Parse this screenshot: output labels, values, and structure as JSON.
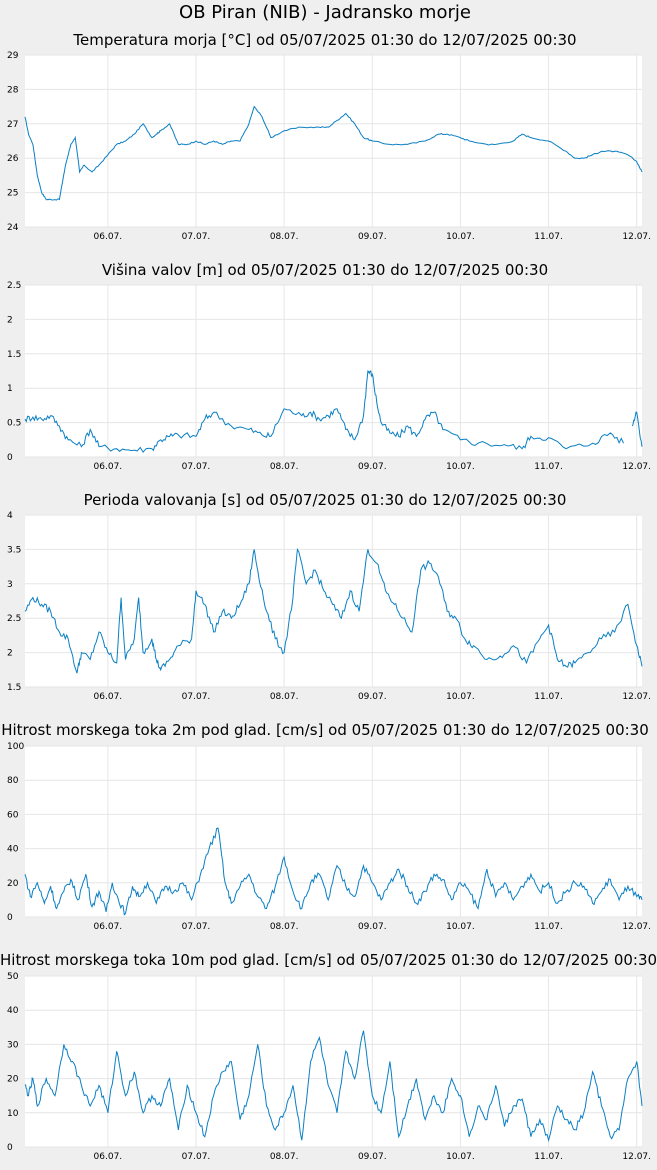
{
  "title": "OB Piran (NIB) - Jadransko morje",
  "line_color": "#0a7fc4",
  "chart_data": [
    {
      "type": "line",
      "title": "Temperatura morja [°C] od 05/07/2025 01:30 do 12/07/2025 00:30",
      "ylim": [
        24,
        29
      ],
      "yticks": [
        "24",
        "25",
        "26",
        "27",
        "28",
        "29"
      ],
      "xticks": [
        "06.07.",
        "07.07.",
        "08.07.",
        "09.07.",
        "10.07.",
        "11.07.",
        "12.07."
      ],
      "xlim_days": [
        5.06,
        12.06
      ],
      "grid": true,
      "series": [
        {
          "x": [
            5.06,
            5.1,
            5.15,
            5.2,
            5.25,
            5.3,
            5.35,
            5.45,
            5.52,
            5.58,
            5.63,
            5.68,
            5.73,
            5.82,
            5.9,
            6.0,
            6.1,
            6.2,
            6.3,
            6.4,
            6.5,
            6.55,
            6.6,
            6.7,
            6.8,
            6.9,
            7.0,
            7.1,
            7.2,
            7.3,
            7.4,
            7.5,
            7.6,
            7.66,
            7.75,
            7.85,
            8.0,
            8.2,
            8.4,
            8.5,
            8.6,
            8.7,
            8.8,
            8.9,
            9.0,
            9.2,
            9.4,
            9.6,
            9.75,
            9.85,
            10.0,
            10.1,
            10.3,
            10.4,
            10.6,
            10.7,
            10.8,
            11.0,
            11.2,
            11.3,
            11.4,
            11.5,
            11.6,
            11.75,
            11.9,
            12.0,
            12.06
          ],
          "y": [
            27.2,
            26.7,
            26.4,
            25.5,
            25.0,
            24.8,
            24.8,
            24.8,
            25.8,
            26.4,
            26.6,
            25.6,
            25.8,
            25.6,
            25.8,
            26.1,
            26.4,
            26.5,
            26.7,
            27.0,
            26.6,
            26.7,
            26.8,
            27.0,
            26.4,
            26.4,
            26.5,
            26.4,
            26.5,
            26.4,
            26.5,
            26.5,
            27.0,
            27.5,
            27.2,
            26.6,
            26.8,
            26.9,
            26.9,
            26.9,
            27.1,
            27.3,
            27.0,
            26.6,
            26.5,
            26.4,
            26.4,
            26.5,
            26.7,
            26.7,
            26.6,
            26.5,
            26.4,
            26.4,
            26.5,
            26.7,
            26.6,
            26.5,
            26.2,
            26.0,
            26.0,
            26.1,
            26.2,
            26.2,
            26.1,
            25.9,
            25.6
          ]
        }
      ]
    },
    {
      "type": "line",
      "title": "Višina valov [m] od 05/07/2025 01:30 do 12/07/2025 00:30",
      "ylim": [
        0,
        2.5
      ],
      "yticks": [
        "0",
        "0.5",
        "1",
        "1.5",
        "2",
        "2.5"
      ],
      "xticks": [
        "06.07.",
        "07.07.",
        "08.07.",
        "09.07.",
        "10.07.",
        "11.07.",
        "12.07."
      ],
      "xlim_days": [
        5.06,
        12.06
      ],
      "grid": true,
      "series": [
        {
          "x": [
            5.06,
            5.15,
            5.25,
            5.35,
            5.45,
            5.55,
            5.7,
            5.8,
            5.9,
            6.1,
            6.3,
            6.5,
            6.6,
            6.7,
            6.8,
            7.0,
            7.1,
            7.2,
            7.4,
            7.6,
            7.75,
            7.85,
            8.0,
            8.2,
            8.3,
            8.4,
            8.5,
            8.6,
            8.7,
            8.8,
            8.9,
            8.95,
            9.0,
            9.05,
            9.1,
            9.2,
            9.3,
            9.4,
            9.5,
            9.6,
            9.7,
            9.8,
            10.0,
            10.2,
            10.5,
            10.7,
            10.8,
            11.0,
            11.2,
            11.5,
            11.7,
            11.85
          ],
          "y": [
            0.55,
            0.58,
            0.55,
            0.6,
            0.45,
            0.25,
            0.15,
            0.4,
            0.15,
            0.12,
            0.1,
            0.12,
            0.25,
            0.3,
            0.32,
            0.3,
            0.55,
            0.65,
            0.45,
            0.4,
            0.32,
            0.3,
            0.7,
            0.6,
            0.65,
            0.55,
            0.6,
            0.7,
            0.4,
            0.25,
            0.6,
            1.25,
            1.2,
            0.8,
            0.5,
            0.35,
            0.3,
            0.45,
            0.3,
            0.55,
            0.65,
            0.4,
            0.25,
            0.2,
            0.18,
            0.12,
            0.3,
            0.28,
            0.12,
            0.2,
            0.35,
            0.2
          ]
        },
        {
          "x": [
            11.95,
            12.0,
            12.06
          ],
          "y": [
            0.45,
            0.65,
            0.15
          ]
        }
      ]
    },
    {
      "type": "line",
      "title": "Perioda valovanja [s] od 05/07/2025 01:30 do 12/07/2025 00:30",
      "ylim": [
        1.5,
        4
      ],
      "yticks": [
        "1.5",
        "2",
        "2.5",
        "3",
        "3.5",
        "4"
      ],
      "xticks": [
        "06.07.",
        "07.07.",
        "08.07.",
        "09.07.",
        "10.07.",
        "11.07.",
        "12.07."
      ],
      "xlim_days": [
        5.06,
        12.06
      ],
      "grid": true,
      "series": [
        {
          "x": [
            5.06,
            5.15,
            5.25,
            5.35,
            5.45,
            5.55,
            5.65,
            5.7,
            5.8,
            5.9,
            6.0,
            6.1,
            6.15,
            6.2,
            6.3,
            6.35,
            6.4,
            6.5,
            6.55,
            6.6,
            6.7,
            6.8,
            6.95,
            7.0,
            7.1,
            7.2,
            7.3,
            7.4,
            7.5,
            7.6,
            7.66,
            7.7,
            7.8,
            7.9,
            8.0,
            8.1,
            8.15,
            8.25,
            8.35,
            8.45,
            8.55,
            8.65,
            8.75,
            8.85,
            8.95,
            9.05,
            9.15,
            9.25,
            9.35,
            9.45,
            9.55,
            9.65,
            9.75,
            9.85,
            9.95,
            10.05,
            10.15,
            10.3,
            10.45,
            10.6,
            10.75,
            10.9,
            11.0,
            11.1,
            11.2,
            11.3,
            11.45,
            11.6,
            11.75,
            11.9,
            12.0,
            12.06
          ],
          "y": [
            2.6,
            2.8,
            2.7,
            2.6,
            2.3,
            2.2,
            1.7,
            2.0,
            1.9,
            2.3,
            2.0,
            1.85,
            2.8,
            1.9,
            2.2,
            2.8,
            2.0,
            2.2,
            1.9,
            1.75,
            1.9,
            2.1,
            2.2,
            2.9,
            2.7,
            2.3,
            2.6,
            2.5,
            2.7,
            3.0,
            3.5,
            3.2,
            2.6,
            2.2,
            2.0,
            2.8,
            3.5,
            3.0,
            3.2,
            2.9,
            2.7,
            2.5,
            2.9,
            2.6,
            3.5,
            3.3,
            2.9,
            2.7,
            2.5,
            2.3,
            3.2,
            3.3,
            3.1,
            2.6,
            2.5,
            2.2,
            2.1,
            1.9,
            1.95,
            2.1,
            1.85,
            2.2,
            2.4,
            1.9,
            1.8,
            1.85,
            2.0,
            2.2,
            2.3,
            2.7,
            2.1,
            1.8
          ]
        }
      ]
    },
    {
      "type": "line",
      "title": "Hitrost morskega toka 2m pod glad. [cm/s] od 05/07/2025 01:30 do 12/07/2025 00:30",
      "ylim": [
        0,
        100
      ],
      "yticks": [
        "0",
        "20",
        "40",
        "60",
        "80",
        "100"
      ],
      "xticks": [
        "06.07.",
        "07.07.",
        "08.07.",
        "09.07.",
        "10.07.",
        "11.07.",
        "12.07."
      ],
      "xlim_days": [
        5.06,
        12.06
      ],
      "grid": true,
      "series": [
        {
          "x": [
            5.06,
            5.12,
            5.2,
            5.28,
            5.35,
            5.42,
            5.5,
            5.58,
            5.66,
            5.75,
            5.82,
            5.9,
            5.98,
            6.05,
            6.12,
            6.2,
            6.28,
            6.35,
            6.45,
            6.55,
            6.65,
            6.75,
            6.85,
            6.95,
            7.05,
            7.15,
            7.25,
            7.33,
            7.4,
            7.5,
            7.6,
            7.7,
            7.8,
            7.9,
            8.0,
            8.1,
            8.2,
            8.3,
            8.4,
            8.5,
            8.6,
            8.7,
            8.8,
            8.9,
            9.0,
            9.1,
            9.2,
            9.3,
            9.4,
            9.5,
            9.6,
            9.7,
            9.8,
            9.9,
            10.0,
            10.1,
            10.2,
            10.3,
            10.4,
            10.5,
            10.6,
            10.7,
            10.8,
            10.9,
            11.0,
            11.1,
            11.2,
            11.3,
            11.4,
            11.5,
            11.6,
            11.7,
            11.8,
            11.9,
            12.0,
            12.06
          ],
          "y": [
            25,
            12,
            20,
            8,
            18,
            5,
            15,
            22,
            10,
            25,
            6,
            15,
            3,
            20,
            10,
            2,
            18,
            12,
            20,
            8,
            18,
            15,
            20,
            10,
            25,
            40,
            52,
            20,
            8,
            18,
            25,
            12,
            5,
            18,
            35,
            15,
            5,
            20,
            25,
            10,
            30,
            18,
            12,
            30,
            20,
            10,
            20,
            28,
            18,
            8,
            15,
            25,
            22,
            10,
            20,
            15,
            5,
            28,
            12,
            20,
            10,
            18,
            25,
            15,
            20,
            8,
            15,
            20,
            18,
            8,
            15,
            22,
            10,
            18,
            12,
            10
          ]
        }
      ]
    },
    {
      "type": "line",
      "title": "Hitrost morskega toka 10m pod glad. [cm/s] od 05/07/2025 01:30 do 12/07/2025 00:30",
      "ylim": [
        0,
        50
      ],
      "yticks": [
        "0",
        "10",
        "20",
        "30",
        "40",
        "50"
      ],
      "xticks": [
        "06.07.",
        "07.07.",
        "08.07.",
        "09.07.",
        "10.07.",
        "11.07.",
        "12.07."
      ],
      "xlim_days": [
        5.06,
        12.06
      ],
      "grid": true,
      "series": [
        {
          "x": [
            5.06,
            5.1,
            5.15,
            5.2,
            5.3,
            5.4,
            5.5,
            5.6,
            5.7,
            5.8,
            5.9,
            6.0,
            6.1,
            6.2,
            6.3,
            6.4,
            6.5,
            6.6,
            6.7,
            6.8,
            6.9,
            7.0,
            7.1,
            7.2,
            7.3,
            7.4,
            7.5,
            7.6,
            7.7,
            7.8,
            7.9,
            8.0,
            8.1,
            8.2,
            8.3,
            8.4,
            8.5,
            8.6,
            8.7,
            8.8,
            8.9,
            9.0,
            9.1,
            9.2,
            9.3,
            9.4,
            9.5,
            9.6,
            9.7,
            9.8,
            9.9,
            10.0,
            10.1,
            10.2,
            10.3,
            10.4,
            10.5,
            10.6,
            10.7,
            10.8,
            10.9,
            11.0,
            11.1,
            11.2,
            11.3,
            11.4,
            11.5,
            11.6,
            11.7,
            11.8,
            11.9,
            12.0,
            12.06
          ],
          "y": [
            18,
            15,
            20,
            12,
            20,
            15,
            30,
            25,
            18,
            12,
            18,
            10,
            28,
            15,
            22,
            10,
            15,
            12,
            20,
            5,
            18,
            10,
            3,
            15,
            22,
            25,
            8,
            15,
            30,
            12,
            5,
            10,
            18,
            2,
            25,
            32,
            18,
            10,
            28,
            20,
            34,
            15,
            10,
            25,
            3,
            12,
            20,
            8,
            15,
            10,
            20,
            15,
            3,
            12,
            8,
            18,
            6,
            12,
            14,
            3,
            8,
            2,
            12,
            8,
            5,
            10,
            22,
            12,
            3,
            5,
            20,
            25,
            12
          ]
        }
      ]
    }
  ]
}
